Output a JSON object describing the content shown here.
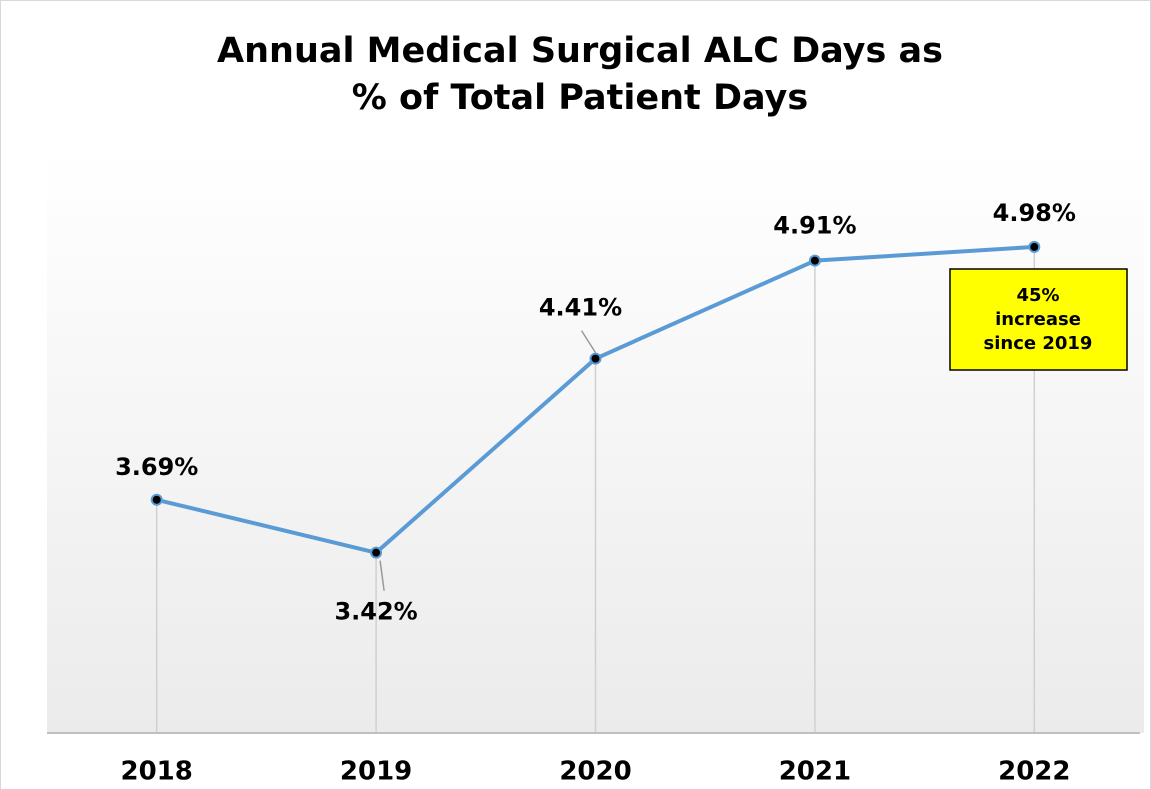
{
  "chart_data": {
    "type": "line",
    "title": [
      "Annual Medical Surgical ALC Days as",
      "% of Total Patient Days"
    ],
    "categories": [
      "2018",
      "2019",
      "2020",
      "2021",
      "2022"
    ],
    "series": [
      {
        "color": "#5b9bd5",
        "values": [
          3.69,
          3.42,
          4.41,
          4.91,
          4.98
        ],
        "value_labels": [
          "3.69%",
          "3.42%",
          "4.41%",
          "4.91%",
          "4.98%"
        ]
      }
    ],
    "ylim": [
      2.5,
      5.5
    ],
    "annotation": [
      "45%",
      "increase",
      "since 2019"
    ],
    "annotation_color": "#ffff00"
  }
}
